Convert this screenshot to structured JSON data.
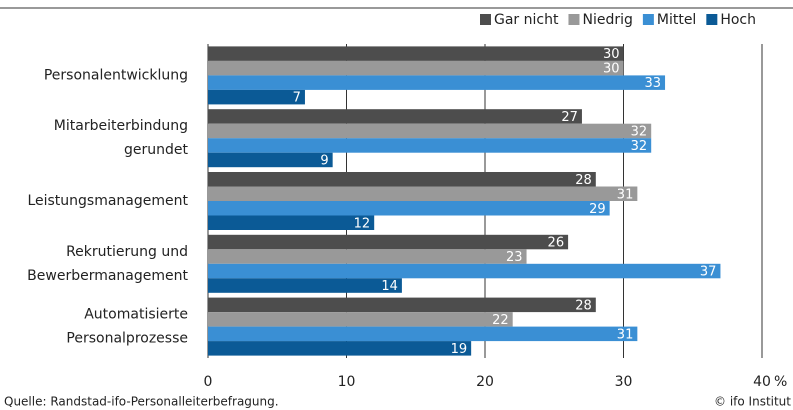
{
  "chart_data": {
    "type": "hbar",
    "categories": [
      [
        "Personalentwicklung"
      ],
      [
        "Mitarbeiterbindung",
        "gerundet"
      ],
      [
        "Leistungsmanagement"
      ],
      [
        "Rekrutierung und",
        "Bewerbermanagement"
      ],
      [
        "Automatisierte",
        "Personalprozesse"
      ]
    ],
    "series": [
      {
        "name": "Gar nicht",
        "color": "#4d4d4d",
        "values": [
          30,
          27,
          28,
          26,
          28
        ]
      },
      {
        "name": "Niedrig",
        "color": "#999999",
        "values": [
          30,
          32,
          31,
          23,
          22
        ]
      },
      {
        "name": "Mittel",
        "color": "#3a8fd4",
        "values": [
          33,
          32,
          29,
          37,
          31
        ]
      },
      {
        "name": "Hoch",
        "color": "#0b5a96",
        "values": [
          7,
          9,
          12,
          14,
          19
        ]
      }
    ],
    "xlim": [
      0,
      40
    ],
    "xticks": [
      0,
      10,
      20,
      30,
      40
    ],
    "xlabel": "%",
    "grid": true,
    "legend": "top-right",
    "source": "Quelle: Randstad-ifo-Personalleiterbefragung.",
    "credit": "© ifo Institut"
  }
}
